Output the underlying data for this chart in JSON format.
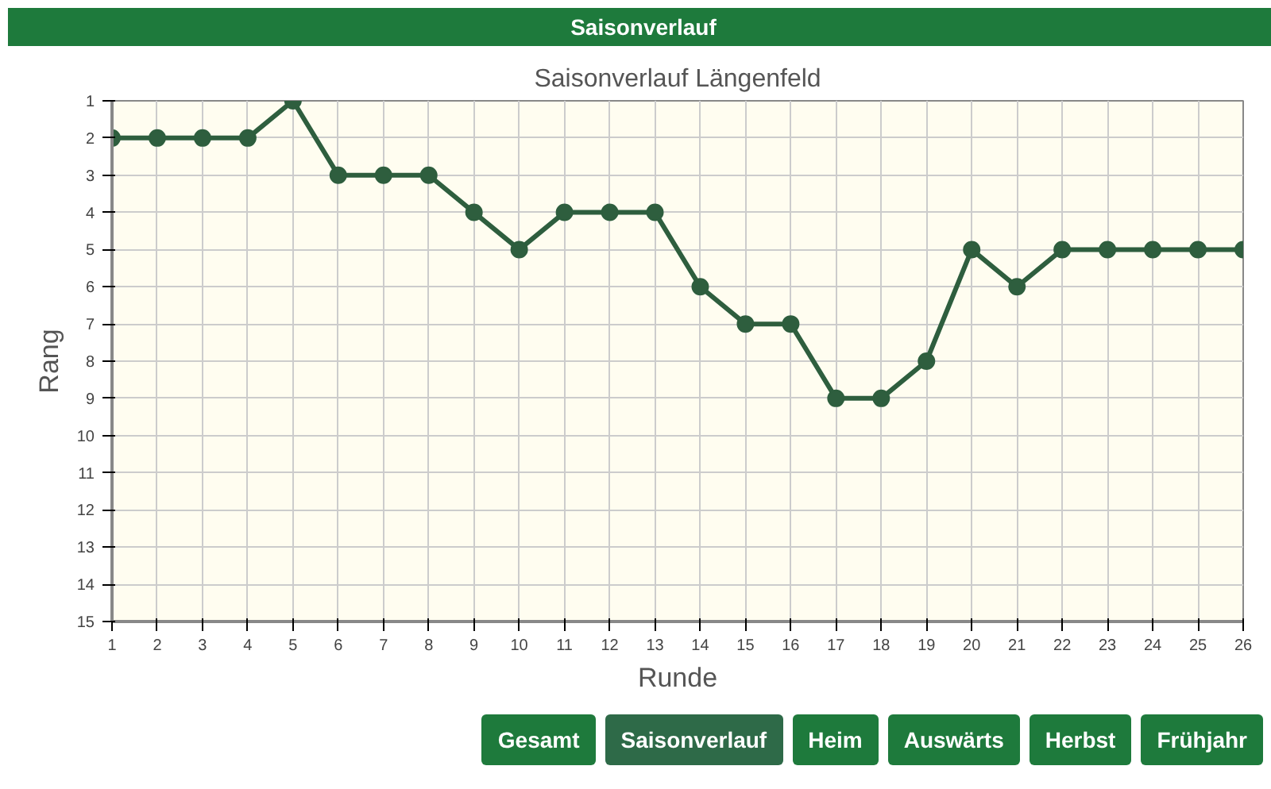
{
  "chart_data": {
    "type": "line",
    "title": "Saisonverlauf Längenfeld",
    "xlabel": "Runde",
    "ylabel": "Rang",
    "x": [
      1,
      2,
      3,
      4,
      5,
      6,
      7,
      8,
      9,
      10,
      11,
      12,
      13,
      14,
      15,
      16,
      17,
      18,
      19,
      20,
      21,
      22,
      23,
      24,
      25,
      26
    ],
    "series": [
      {
        "color": "#2e5e3e",
        "values": [
          2,
          2,
          2,
          2,
          1,
          3,
          3,
          3,
          4,
          5,
          4,
          4,
          4,
          6,
          7,
          7,
          9,
          9,
          8,
          5,
          6,
          5,
          5,
          5,
          5,
          5
        ]
      }
    ],
    "xlim": [
      1,
      26
    ],
    "ylim": [
      15,
      1
    ],
    "xticks": [
      1,
      2,
      3,
      4,
      5,
      6,
      7,
      8,
      9,
      10,
      11,
      12,
      13,
      14,
      15,
      16,
      17,
      18,
      19,
      20,
      21,
      22,
      23,
      24,
      25,
      26
    ],
    "yticks": [
      1,
      2,
      3,
      4,
      5,
      6,
      7,
      8,
      9,
      10,
      11,
      12,
      13,
      14,
      15
    ],
    "grid": true,
    "marker": "circle",
    "line_style": "solid",
    "annotations": [
      "Saisonverlauf",
      "Gesamt",
      "Saisonverlauf",
      "Heim",
      "Auswärts",
      "Herbst",
      "Frühjahr"
    ]
  }
}
